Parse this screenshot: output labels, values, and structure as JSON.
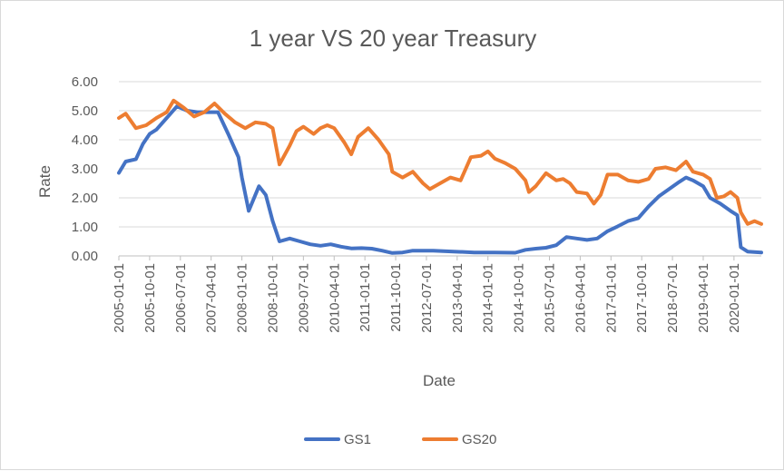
{
  "chart_data": {
    "type": "line",
    "title": "1 year VS 20 year Treasury",
    "xlabel": "Date",
    "ylabel": "Rate",
    "ylim": [
      0,
      6
    ],
    "yticks": [
      "0.00",
      "1.00",
      "2.00",
      "3.00",
      "4.00",
      "5.00",
      "6.00"
    ],
    "grid": "horizontal",
    "legend_position": "bottom",
    "x_start": "2005-01-01",
    "x_end": "2020-09-01",
    "x_tick_labels": [
      "2005-01-01",
      "2005-10-01",
      "2006-07-01",
      "2007-04-01",
      "2008-01-01",
      "2008-10-01",
      "2009-07-01",
      "2010-04-01",
      "2011-01-01",
      "2011-10-01",
      "2012-07-01",
      "2013-04-01",
      "2014-01-01",
      "2014-10-01",
      "2015-07-01",
      "2016-04-01",
      "2017-01-01",
      "2017-10-01",
      "2018-07-01",
      "2019-04-01",
      "2020-01-01"
    ],
    "series": [
      {
        "name": "GS1",
        "color": "#4472C4",
        "points": [
          [
            "2005-01-01",
            2.86
          ],
          [
            "2005-03-01",
            3.25
          ],
          [
            "2005-06-01",
            3.33
          ],
          [
            "2005-08-01",
            3.85
          ],
          [
            "2005-10-01",
            4.2
          ],
          [
            "2005-12-01",
            4.35
          ],
          [
            "2006-03-01",
            4.75
          ],
          [
            "2006-06-01",
            5.15
          ],
          [
            "2006-09-01",
            5.0
          ],
          [
            "2006-12-01",
            4.95
          ],
          [
            "2007-03-01",
            4.95
          ],
          [
            "2007-06-01",
            4.95
          ],
          [
            "2007-09-01",
            4.2
          ],
          [
            "2007-12-01",
            3.4
          ],
          [
            "2008-01-01",
            2.7
          ],
          [
            "2008-03-01",
            1.55
          ],
          [
            "2008-06-01",
            2.4
          ],
          [
            "2008-08-01",
            2.1
          ],
          [
            "2008-10-01",
            1.2
          ],
          [
            "2008-12-01",
            0.5
          ],
          [
            "2009-03-01",
            0.6
          ],
          [
            "2009-06-01",
            0.5
          ],
          [
            "2009-09-01",
            0.4
          ],
          [
            "2009-12-01",
            0.35
          ],
          [
            "2010-03-01",
            0.4
          ],
          [
            "2010-06-01",
            0.32
          ],
          [
            "2010-09-01",
            0.26
          ],
          [
            "2010-12-01",
            0.27
          ],
          [
            "2011-03-01",
            0.25
          ],
          [
            "2011-06-01",
            0.18
          ],
          [
            "2011-09-01",
            0.1
          ],
          [
            "2011-12-01",
            0.12
          ],
          [
            "2012-03-01",
            0.18
          ],
          [
            "2012-09-01",
            0.18
          ],
          [
            "2013-03-01",
            0.15
          ],
          [
            "2013-09-01",
            0.12
          ],
          [
            "2014-03-01",
            0.12
          ],
          [
            "2014-09-01",
            0.11
          ],
          [
            "2014-12-01",
            0.21
          ],
          [
            "2015-03-01",
            0.25
          ],
          [
            "2015-06-01",
            0.28
          ],
          [
            "2015-09-01",
            0.37
          ],
          [
            "2015-12-01",
            0.65
          ],
          [
            "2016-03-01",
            0.6
          ],
          [
            "2016-06-01",
            0.55
          ],
          [
            "2016-09-01",
            0.6
          ],
          [
            "2016-12-01",
            0.85
          ],
          [
            "2017-03-01",
            1.02
          ],
          [
            "2017-06-01",
            1.2
          ],
          [
            "2017-09-01",
            1.3
          ],
          [
            "2017-12-01",
            1.7
          ],
          [
            "2018-03-01",
            2.05
          ],
          [
            "2018-06-01",
            2.3
          ],
          [
            "2018-09-01",
            2.55
          ],
          [
            "2018-11-01",
            2.7
          ],
          [
            "2019-01-01",
            2.6
          ],
          [
            "2019-04-01",
            2.4
          ],
          [
            "2019-06-01",
            2.0
          ],
          [
            "2019-09-01",
            1.8
          ],
          [
            "2019-12-01",
            1.55
          ],
          [
            "2020-02-01",
            1.4
          ],
          [
            "2020-03-01",
            0.3
          ],
          [
            "2020-05-01",
            0.15
          ],
          [
            "2020-09-01",
            0.12
          ]
        ]
      },
      {
        "name": "GS20",
        "color": "#ED7D31",
        "points": [
          [
            "2005-01-01",
            4.75
          ],
          [
            "2005-03-01",
            4.9
          ],
          [
            "2005-06-01",
            4.4
          ],
          [
            "2005-09-01",
            4.5
          ],
          [
            "2005-12-01",
            4.75
          ],
          [
            "2006-03-01",
            4.95
          ],
          [
            "2006-05-01",
            5.35
          ],
          [
            "2006-08-01",
            5.1
          ],
          [
            "2006-11-01",
            4.8
          ],
          [
            "2007-02-01",
            4.95
          ],
          [
            "2007-05-01",
            5.25
          ],
          [
            "2007-08-01",
            4.9
          ],
          [
            "2007-11-01",
            4.6
          ],
          [
            "2008-02-01",
            4.4
          ],
          [
            "2008-05-01",
            4.6
          ],
          [
            "2008-08-01",
            4.55
          ],
          [
            "2008-10-01",
            4.4
          ],
          [
            "2008-12-01",
            3.15
          ],
          [
            "2009-03-01",
            3.8
          ],
          [
            "2009-05-01",
            4.3
          ],
          [
            "2009-07-01",
            4.45
          ],
          [
            "2009-10-01",
            4.2
          ],
          [
            "2009-12-01",
            4.4
          ],
          [
            "2010-02-01",
            4.5
          ],
          [
            "2010-04-01",
            4.4
          ],
          [
            "2010-07-01",
            3.9
          ],
          [
            "2010-09-01",
            3.5
          ],
          [
            "2010-11-01",
            4.1
          ],
          [
            "2011-02-01",
            4.4
          ],
          [
            "2011-05-01",
            4.0
          ],
          [
            "2011-08-01",
            3.5
          ],
          [
            "2011-09-01",
            2.9
          ],
          [
            "2011-12-01",
            2.7
          ],
          [
            "2012-03-01",
            2.9
          ],
          [
            "2012-06-01",
            2.5
          ],
          [
            "2012-08-01",
            2.3
          ],
          [
            "2012-11-01",
            2.5
          ],
          [
            "2013-02-01",
            2.7
          ],
          [
            "2013-05-01",
            2.6
          ],
          [
            "2013-08-01",
            3.4
          ],
          [
            "2013-11-01",
            3.45
          ],
          [
            "2014-01-01",
            3.6
          ],
          [
            "2014-03-01",
            3.35
          ],
          [
            "2014-06-01",
            3.2
          ],
          [
            "2014-09-01",
            3.0
          ],
          [
            "2014-12-01",
            2.6
          ],
          [
            "2015-01-01",
            2.2
          ],
          [
            "2015-03-01",
            2.4
          ],
          [
            "2015-06-01",
            2.85
          ],
          [
            "2015-09-01",
            2.6
          ],
          [
            "2015-11-01",
            2.65
          ],
          [
            "2016-01-01",
            2.5
          ],
          [
            "2016-03-01",
            2.2
          ],
          [
            "2016-06-01",
            2.15
          ],
          [
            "2016-08-01",
            1.8
          ],
          [
            "2016-10-01",
            2.1
          ],
          [
            "2016-12-01",
            2.8
          ],
          [
            "2017-03-01",
            2.8
          ],
          [
            "2017-06-01",
            2.6
          ],
          [
            "2017-09-01",
            2.55
          ],
          [
            "2017-12-01",
            2.65
          ],
          [
            "2018-02-01",
            3.0
          ],
          [
            "2018-05-01",
            3.05
          ],
          [
            "2018-08-01",
            2.95
          ],
          [
            "2018-11-01",
            3.25
          ],
          [
            "2019-01-01",
            2.9
          ],
          [
            "2019-04-01",
            2.8
          ],
          [
            "2019-06-01",
            2.65
          ],
          [
            "2019-08-01",
            2.0
          ],
          [
            "2019-10-01",
            2.05
          ],
          [
            "2019-12-01",
            2.2
          ],
          [
            "2020-02-01",
            2.0
          ],
          [
            "2020-03-01",
            1.5
          ],
          [
            "2020-05-01",
            1.1
          ],
          [
            "2020-07-01",
            1.2
          ],
          [
            "2020-09-01",
            1.1
          ]
        ]
      }
    ]
  }
}
